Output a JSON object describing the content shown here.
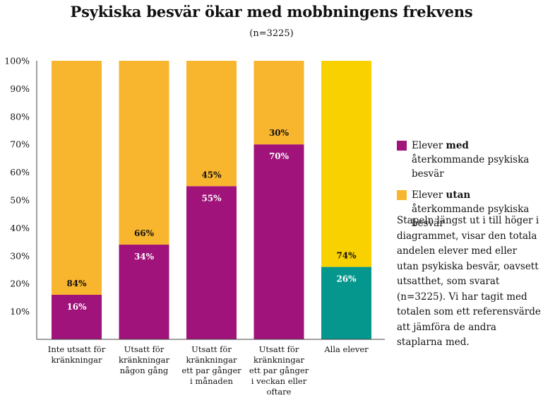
{
  "chart_data": {
    "type": "bar",
    "stacked": true,
    "title": "Psykiska besvär ökar med mobbningens frekvens",
    "subtitle": "(n=3225)",
    "categories": [
      [
        "Inte utsatt för",
        "kränkningar"
      ],
      [
        "Utsatt för",
        "kränkningar",
        "någon gång"
      ],
      [
        "Utsatt för",
        "kränkningar",
        "ett par gånger",
        "i månaden"
      ],
      [
        "Utsatt för",
        "kränkningar",
        "ett par gånger",
        "i veckan eller",
        "oftare"
      ],
      [
        "Alla elever"
      ]
    ],
    "series": [
      {
        "name_parts": [
          "Elever ",
          "med",
          " återkommande psykiska besvär"
        ],
        "values": [
          16,
          34,
          55,
          70,
          26
        ],
        "labels": [
          "16%",
          "34%",
          "55%",
          "70%",
          "26%"
        ],
        "colors": [
          "#a0137a",
          "#a0137a",
          "#a0137a",
          "#a0137a",
          "#05978d"
        ]
      },
      {
        "name_parts": [
          "Elever ",
          "utan",
          " återkommande psykiska besvär"
        ],
        "values": [
          84,
          66,
          45,
          30,
          74
        ],
        "labels": [
          "84%",
          "66%",
          "45%",
          "30%",
          "74%"
        ],
        "colors": [
          "#f8b52e",
          "#f8b52e",
          "#f8b52e",
          "#f8b52e",
          "#f9d100"
        ]
      }
    ],
    "yticks": [
      "10%",
      "20%",
      "30%",
      "40%",
      "50%",
      "60%",
      "70%",
      "80%",
      "90%",
      "100%"
    ],
    "ylim": [
      0,
      100
    ],
    "grid": false,
    "legend_position": "right",
    "legend_colors": [
      "#a0137a",
      "#f8b52e"
    ]
  },
  "note": "Stapeln längst ut i till höger i diagrammet, visar den totala andelen elever med eller utan psykiska besvär, oavsett utsatthet, som svarat (n=3225). Vi har tagit med totalen som ett referensvärde att jämföra de andra staplarna med."
}
